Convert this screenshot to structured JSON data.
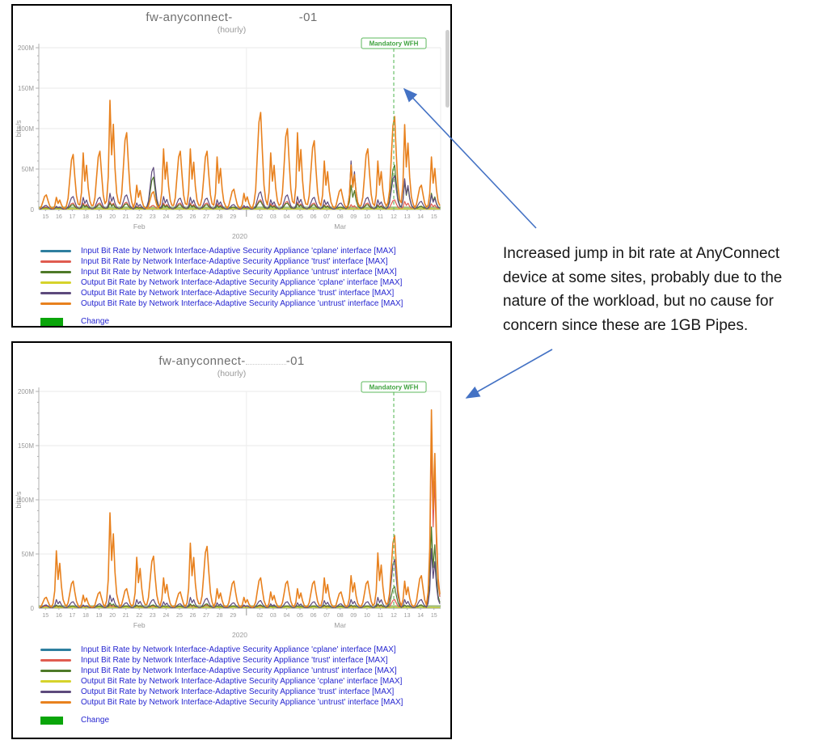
{
  "page": {
    "background": "#ffffff"
  },
  "note": {
    "text": "Increased jump in bit rate at AnyConnect device at some sites, probably due to the nature of the workload, but no cause for concern since these are 1GB Pipes.",
    "lines": [
      "Increased jump in bit rate at AnyConnect",
      "device at some sites, probably due to the",
      "nature of the workload, but no cause for",
      "concern since these are 1GB Pipes."
    ],
    "arrow_color": "#4472c4"
  },
  "legend": {
    "items": [
      {
        "name": "input-cplane",
        "color": "#2e7f9f",
        "label": "Input Bit Rate by Network Interface-Adaptive Security Appliance 'cplane' interface [MAX]"
      },
      {
        "name": "input-trust",
        "color": "#e05c50",
        "label": "Input Bit Rate by Network Interface-Adaptive Security Appliance 'trust' interface [MAX]"
      },
      {
        "name": "input-untrust",
        "color": "#4e7a28",
        "label": "Input Bit Rate by Network Interface-Adaptive Security Appliance 'untrust' interface [MAX]"
      },
      {
        "name": "output-cplane",
        "color": "#d6d32b",
        "label": "Output Bit Rate by Network Interface-Adaptive Security Appliance 'cplane' interface [MAX]"
      },
      {
        "name": "output-trust",
        "color": "#5d4a7c",
        "label": "Output Bit Rate by Network Interface-Adaptive Security Appliance 'trust' interface [MAX]"
      },
      {
        "name": "output-untrust",
        "color": "#e8811e",
        "label": "Output Bit Rate by Network Interface-Adaptive Security Appliance 'untrust' interface [MAX]"
      }
    ],
    "change": {
      "label": "Change",
      "color": "#0aa50a",
      "area_color": "#b6cd97"
    }
  },
  "chart_data": [
    {
      "type": "line",
      "title_prefix": "fw-anyconnect-",
      "title_suffix": "-01",
      "subtitle": "(hourly)",
      "ylabel": "bits/s",
      "ylim": [
        0,
        200000000
      ],
      "ytick_labels": [
        "0",
        "50M",
        "100M",
        "150M",
        "200M"
      ],
      "x_day_labels": [
        "15",
        "16",
        "17",
        "18",
        "19",
        "20",
        "21",
        "22",
        "23",
        "24",
        "25",
        "26",
        "27",
        "28",
        "29",
        "",
        "02",
        "03",
        "04",
        "05",
        "06",
        "07",
        "08",
        "09",
        "10",
        "11",
        "12",
        "13",
        "14",
        "15"
      ],
      "month_labels": [
        "Feb",
        "Mar"
      ],
      "year_label": "2020",
      "grid": true,
      "legend_position": "bottom",
      "annotation": {
        "label": "Mandatory WFH",
        "day": "Mar 12",
        "day_index": 26,
        "color": "#4cae4c"
      },
      "units_note": "daily peak values in Mbit/s, read from plot",
      "series": [
        {
          "name": "input-cplane",
          "daily_peaks_M": [
            1,
            1,
            1,
            1,
            1,
            1,
            1,
            1,
            1,
            1,
            1,
            1,
            1,
            1,
            1,
            1,
            1,
            1,
            1,
            1,
            1,
            1,
            1,
            1,
            1,
            1,
            1,
            1,
            1,
            1
          ]
        },
        {
          "name": "input-trust",
          "daily_peaks_M": [
            3,
            3,
            8,
            8,
            8,
            10,
            9,
            4,
            5,
            8,
            8,
            8,
            8,
            7,
            3,
            3,
            12,
            7,
            10,
            9,
            8,
            6,
            3,
            6,
            8,
            6,
            12,
            10,
            4,
            7
          ]
        },
        {
          "name": "input-untrust",
          "daily_peaks_M": [
            2,
            2,
            6,
            6,
            6,
            8,
            7,
            3,
            40,
            6,
            6,
            6,
            6,
            5,
            3,
            2,
            10,
            5,
            8,
            7,
            6,
            5,
            3,
            30,
            6,
            5,
            55,
            35,
            4,
            20
          ]
        },
        {
          "name": "output-cplane",
          "daily_peaks_M": [
            1,
            1,
            1,
            1,
            1,
            1,
            1,
            1,
            1,
            1,
            1,
            1,
            1,
            1,
            1,
            1,
            1,
            1,
            1,
            1,
            1,
            1,
            1,
            1,
            1,
            1,
            1,
            1,
            1,
            1
          ]
        },
        {
          "name": "output-trust",
          "daily_peaks_M": [
            5,
            4,
            16,
            15,
            15,
            20,
            18,
            8,
            52,
            16,
            14,
            15,
            14,
            12,
            6,
            5,
            22,
            12,
            18,
            16,
            15,
            12,
            8,
            60,
            15,
            12,
            42,
            38,
            10,
            18
          ]
        },
        {
          "name": "output-untrust",
          "daily_peaks_M": [
            18,
            15,
            68,
            70,
            72,
            135,
            95,
            30,
            22,
            75,
            72,
            75,
            72,
            65,
            25,
            20,
            120,
            70,
            100,
            95,
            85,
            60,
            25,
            55,
            75,
            60,
            115,
            105,
            30,
            65
          ]
        }
      ]
    },
    {
      "type": "line",
      "title_prefix": "fw-anyconnect-",
      "title_suffix": "-01",
      "subtitle": "(hourly)",
      "ylabel": "bits/s",
      "ylim": [
        0,
        200000000
      ],
      "ytick_labels": [
        "0",
        "50M",
        "100M",
        "150M",
        "200M"
      ],
      "x_day_labels": [
        "15",
        "16",
        "17",
        "18",
        "19",
        "20",
        "21",
        "22",
        "23",
        "24",
        "25",
        "26",
        "27",
        "28",
        "29",
        "",
        "02",
        "03",
        "04",
        "05",
        "06",
        "07",
        "08",
        "09",
        "10",
        "11",
        "12",
        "13",
        "14",
        "15"
      ],
      "month_labels": [
        "Feb",
        "Mar"
      ],
      "year_label": "2020",
      "grid": true,
      "legend_position": "bottom",
      "annotation": {
        "label": "Mandatory WFH",
        "day": "Mar 12",
        "day_index": 26,
        "color": "#4cae4c"
      },
      "units_note": "daily peak values in Mbit/s, read from plot",
      "series": [
        {
          "name": "input-cplane",
          "daily_peaks_M": [
            1,
            1,
            1,
            1,
            1,
            1,
            1,
            1,
            1,
            1,
            1,
            1,
            1,
            1,
            1,
            1,
            1,
            1,
            1,
            1,
            1,
            1,
            1,
            1,
            1,
            1,
            1,
            1,
            1,
            1
          ]
        },
        {
          "name": "input-trust",
          "daily_peaks_M": [
            2,
            2,
            2,
            2,
            2,
            3,
            2,
            2,
            2,
            2,
            2,
            3,
            3,
            2,
            2,
            2,
            2,
            2,
            2,
            2,
            2,
            2,
            2,
            2,
            2,
            3,
            8,
            3,
            3,
            150
          ]
        },
        {
          "name": "input-untrust",
          "daily_peaks_M": [
            1,
            3,
            2,
            1,
            2,
            5,
            2,
            3,
            3,
            2,
            2,
            4,
            4,
            2,
            2,
            1,
            3,
            2,
            2,
            2,
            2,
            3,
            2,
            3,
            2,
            4,
            20,
            3,
            3,
            75
          ]
        },
        {
          "name": "output-cplane",
          "daily_peaks_M": [
            1,
            1,
            1,
            1,
            1,
            1,
            1,
            1,
            1,
            1,
            1,
            1,
            1,
            1,
            1,
            1,
            1,
            1,
            1,
            1,
            1,
            1,
            1,
            1,
            1,
            1,
            1,
            1,
            1,
            1
          ]
        },
        {
          "name": "output-trust",
          "daily_peaks_M": [
            3,
            8,
            6,
            3,
            4,
            12,
            5,
            8,
            8,
            6,
            4,
            10,
            9,
            5,
            5,
            3,
            7,
            4,
            6,
            5,
            6,
            7,
            4,
            8,
            6,
            10,
            45,
            8,
            8,
            55
          ]
        },
        {
          "name": "output-untrust",
          "daily_peaks_M": [
            10,
            53,
            25,
            12,
            15,
            88,
            18,
            47,
            48,
            28,
            15,
            60,
            57,
            18,
            25,
            10,
            28,
            15,
            25,
            18,
            25,
            28,
            15,
            30,
            25,
            51,
            67,
            25,
            30,
            183
          ]
        }
      ]
    }
  ]
}
